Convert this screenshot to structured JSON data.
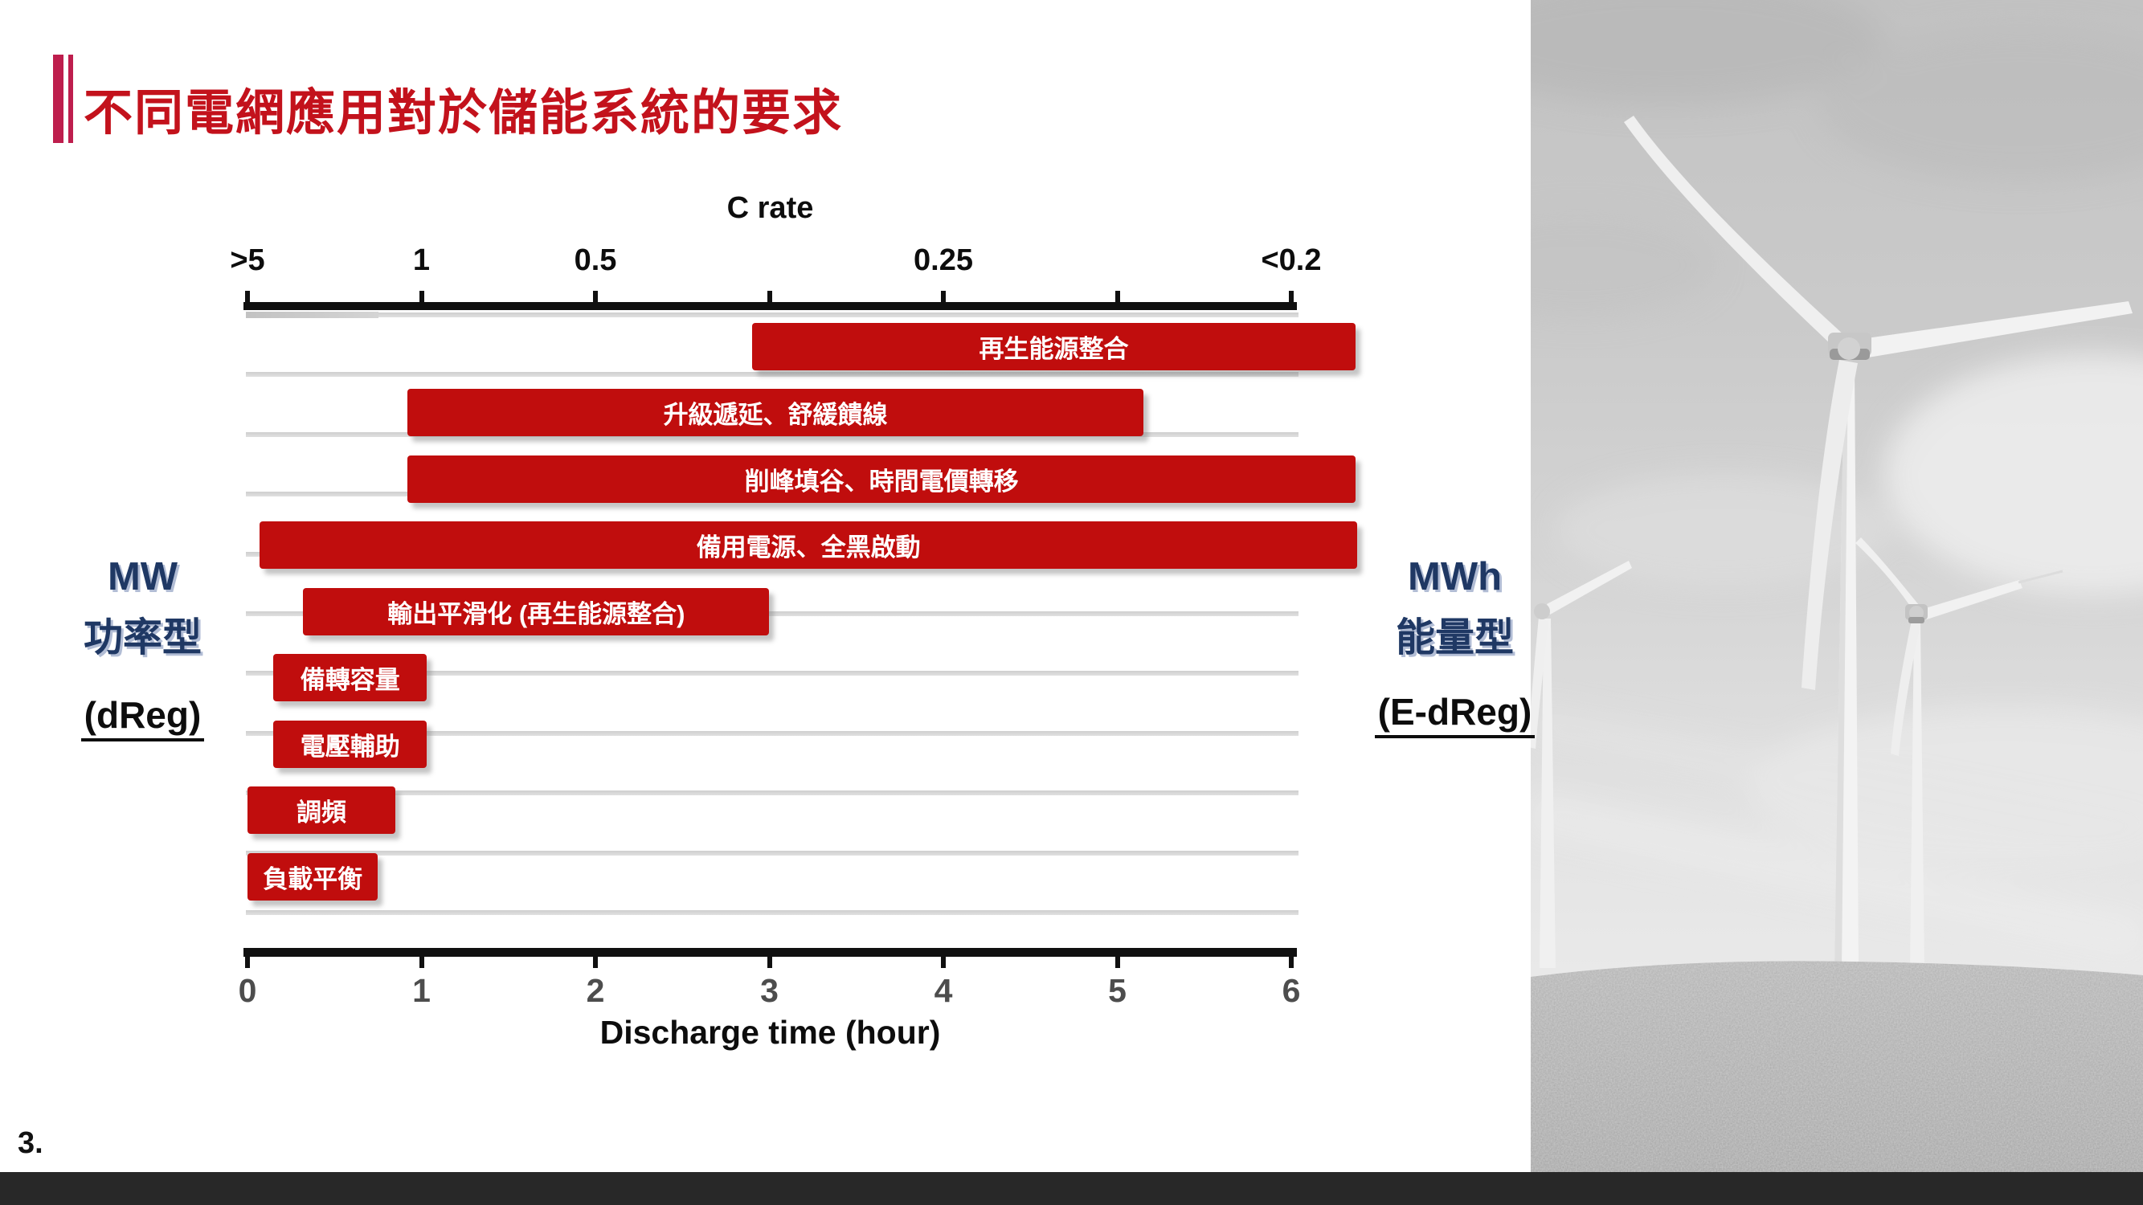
{
  "slide": {
    "title": "不同電網應用對於儲能系統的要求",
    "page_number": "3.",
    "colors": {
      "title_red": "#C3121C",
      "accent_red": "#BE1E4D",
      "bar_red": "#C00D0D",
      "navy": "#1F3864",
      "gridline_gray": "#D9D9D9",
      "axis_black": "#101010",
      "bottom_tick_gray": "#4D4D4D",
      "footer_bar": "#282828"
    }
  },
  "left_label": {
    "line1": "MW",
    "line2": "功率型",
    "line3": "(dReg)"
  },
  "right_label": {
    "line1": "MWh",
    "line2": "能量型",
    "line3": "(E-dReg)"
  },
  "chart_data": {
    "type": "bar",
    "orientation": "horizontal",
    "grid": true,
    "top_axis": {
      "title": "C rate",
      "tick_positions_hours": [
        0,
        1,
        2,
        3,
        4,
        5,
        6
      ],
      "tick_labels": [
        ">5",
        "1",
        "0.5",
        "",
        "0.25",
        "",
        "<0.2"
      ]
    },
    "bottom_axis": {
      "title": "Discharge time (hour)",
      "tick_positions_hours": [
        0,
        1,
        2,
        3,
        4,
        5,
        6
      ],
      "tick_labels": [
        "0",
        "1",
        "2",
        "3",
        "4",
        "5",
        "6"
      ],
      "range_hours": [
        0,
        6
      ]
    },
    "bars": [
      {
        "label": "再生能源整合",
        "start_hour": 2.9,
        "end_hour": 6.37
      },
      {
        "label": "升級遞延、舒緩饋線",
        "start_hour": 0.92,
        "end_hour": 5.15
      },
      {
        "label": "削峰填谷、時間電價轉移",
        "start_hour": 0.92,
        "end_hour": 6.37
      },
      {
        "label": "備用電源、全黑啟動",
        "start_hour": 0.07,
        "end_hour": 6.38
      },
      {
        "label": "輸出平滑化 (再生能源整合)",
        "start_hour": 0.32,
        "end_hour": 3.0
      },
      {
        "label": "備轉容量",
        "start_hour": 0.15,
        "end_hour": 1.03
      },
      {
        "label": "電壓輔助",
        "start_hour": 0.15,
        "end_hour": 1.03
      },
      {
        "label": "調頻",
        "start_hour": 0.0,
        "end_hour": 0.85
      },
      {
        "label": "負載平衡",
        "start_hour": 0.0,
        "end_hour": 0.75
      }
    ]
  }
}
